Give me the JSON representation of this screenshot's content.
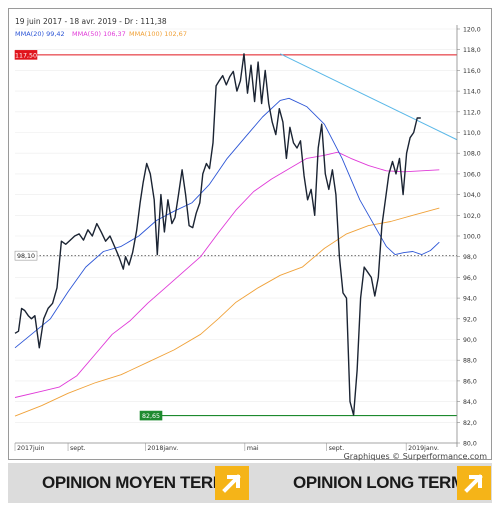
{
  "header_text": "19 juin 2017 - 18 avr. 2019 - Dr : 111,38",
  "legend": [
    {
      "label": "MMA(20)",
      "value": "99,42",
      "color": "#2d56d6"
    },
    {
      "label": "MMA(50)",
      "value": "106,37",
      "color": "#e03ad8"
    },
    {
      "label": "MMA(100)",
      "value": "102,67",
      "color": "#f0a23a"
    }
  ],
  "credit": "Graphiques © Surperformance.com",
  "opinions": {
    "medium_term": "OPINION MOYEN TERME",
    "long_term": "OPINION LONG TERME",
    "medium_icon": "arrow-up-right-icon",
    "long_icon": "arrow-up-right-icon",
    "accent": "#f5b418"
  },
  "chart_data": {
    "type": "line",
    "ylim": [
      80,
      120
    ],
    "y_ticks": [
      "80,0",
      "82,0",
      "84,0",
      "86,0",
      "88,0",
      "90,0",
      "92,0",
      "94,0",
      "96,0",
      "98,0",
      "100,0",
      "102,0",
      "104,0",
      "106,0",
      "108,0",
      "110,0",
      "112,0",
      "114,0",
      "116,0",
      "118,0",
      "120,0"
    ],
    "x_labels": [
      {
        "t": 0.0,
        "label": "2017juin"
      },
      {
        "t": 0.12,
        "label": "sept."
      },
      {
        "t": 0.295,
        "label": "2018janv."
      },
      {
        "t": 0.52,
        "label": "mai"
      },
      {
        "t": 0.705,
        "label": "sept."
      },
      {
        "t": 0.885,
        "label": "2019janv."
      }
    ],
    "levels": [
      {
        "name": "high",
        "value": 117.5,
        "label": "117,50",
        "color": "#e0141c",
        "style": "solid"
      },
      {
        "name": "mid",
        "value": 98.1,
        "label": "98,10",
        "color": "#555555",
        "style": "dotted"
      },
      {
        "name": "low",
        "value": 82.65,
        "label": "82,65",
        "color": "#1d8a2e",
        "style": "solid"
      }
    ],
    "trendline": {
      "color": "#5ab8e8",
      "points": [
        [
          0.6,
          117.6
        ],
        [
          1.0,
          109.3
        ]
      ]
    },
    "series": [
      {
        "name": "Cours",
        "color": "#1b2433",
        "points": [
          [
            0.0,
            90.6
          ],
          [
            0.008,
            90.8
          ],
          [
            0.015,
            93.0
          ],
          [
            0.022,
            92.8
          ],
          [
            0.03,
            92.3
          ],
          [
            0.037,
            92.0
          ],
          [
            0.045,
            92.3
          ],
          [
            0.055,
            89.2
          ],
          [
            0.065,
            92.0
          ],
          [
            0.075,
            93.0
          ],
          [
            0.085,
            93.5
          ],
          [
            0.095,
            95.0
          ],
          [
            0.105,
            99.5
          ],
          [
            0.115,
            99.2
          ],
          [
            0.125,
            99.6
          ],
          [
            0.135,
            100.0
          ],
          [
            0.145,
            100.2
          ],
          [
            0.155,
            99.6
          ],
          [
            0.165,
            100.6
          ],
          [
            0.175,
            100.0
          ],
          [
            0.185,
            101.2
          ],
          [
            0.195,
            100.4
          ],
          [
            0.205,
            99.5
          ],
          [
            0.215,
            100.0
          ],
          [
            0.225,
            99.0
          ],
          [
            0.235,
            98.0
          ],
          [
            0.245,
            96.8
          ],
          [
            0.25,
            98.0
          ],
          [
            0.258,
            97.2
          ],
          [
            0.266,
            98.4
          ],
          [
            0.275,
            100.5
          ],
          [
            0.283,
            103.2
          ],
          [
            0.29,
            105.2
          ],
          [
            0.298,
            107.0
          ],
          [
            0.306,
            106.0
          ],
          [
            0.315,
            103.5
          ],
          [
            0.322,
            98.2
          ],
          [
            0.33,
            104.0
          ],
          [
            0.338,
            100.4
          ],
          [
            0.346,
            103.5
          ],
          [
            0.355,
            101.2
          ],
          [
            0.362,
            101.8
          ],
          [
            0.37,
            104.0
          ],
          [
            0.378,
            106.4
          ],
          [
            0.386,
            104.0
          ],
          [
            0.394,
            101.0
          ],
          [
            0.402,
            100.8
          ],
          [
            0.41,
            102.2
          ],
          [
            0.418,
            103.2
          ],
          [
            0.425,
            106.0
          ],
          [
            0.433,
            107.0
          ],
          [
            0.44,
            106.5
          ],
          [
            0.448,
            109.0
          ],
          [
            0.455,
            114.5
          ],
          [
            0.462,
            115.0
          ],
          [
            0.47,
            115.5
          ],
          [
            0.478,
            114.6
          ],
          [
            0.486,
            115.4
          ],
          [
            0.494,
            115.9
          ],
          [
            0.502,
            114.0
          ],
          [
            0.51,
            115.0
          ],
          [
            0.518,
            117.6
          ],
          [
            0.526,
            113.8
          ],
          [
            0.534,
            116.5
          ],
          [
            0.542,
            113.0
          ],
          [
            0.55,
            116.8
          ],
          [
            0.558,
            112.8
          ],
          [
            0.566,
            116.0
          ],
          [
            0.574,
            112.8
          ],
          [
            0.582,
            111.0
          ],
          [
            0.59,
            109.8
          ],
          [
            0.598,
            112.3
          ],
          [
            0.606,
            111.0
          ],
          [
            0.614,
            107.5
          ],
          [
            0.622,
            110.5
          ],
          [
            0.63,
            109.0
          ],
          [
            0.638,
            108.5
          ],
          [
            0.646,
            109.2
          ],
          [
            0.654,
            105.8
          ],
          [
            0.662,
            103.5
          ],
          [
            0.67,
            104.5
          ],
          [
            0.678,
            102.0
          ],
          [
            0.686,
            108.5
          ],
          [
            0.694,
            110.8
          ],
          [
            0.702,
            106.0
          ],
          [
            0.71,
            104.5
          ],
          [
            0.718,
            106.4
          ],
          [
            0.726,
            104.0
          ],
          [
            0.734,
            98.0
          ],
          [
            0.742,
            94.5
          ],
          [
            0.75,
            94.0
          ],
          [
            0.758,
            84.0
          ],
          [
            0.766,
            82.7
          ],
          [
            0.774,
            87.0
          ],
          [
            0.782,
            94.0
          ],
          [
            0.79,
            97.0
          ],
          [
            0.798,
            96.5
          ],
          [
            0.806,
            96.0
          ],
          [
            0.814,
            94.2
          ],
          [
            0.822,
            96.0
          ],
          [
            0.83,
            101.0
          ],
          [
            0.838,
            103.5
          ],
          [
            0.846,
            106.0
          ],
          [
            0.854,
            107.2
          ],
          [
            0.862,
            106.0
          ],
          [
            0.87,
            107.5
          ],
          [
            0.878,
            104.0
          ],
          [
            0.886,
            108.0
          ],
          [
            0.894,
            109.5
          ],
          [
            0.902,
            110.0
          ],
          [
            0.91,
            111.4
          ],
          [
            0.918,
            111.4
          ]
        ]
      },
      {
        "name": "MMA(20)",
        "color": "#2d56d6",
        "points": [
          [
            0.0,
            89.2
          ],
          [
            0.04,
            90.6
          ],
          [
            0.08,
            92.0
          ],
          [
            0.12,
            94.6
          ],
          [
            0.16,
            97.0
          ],
          [
            0.2,
            98.5
          ],
          [
            0.24,
            99.0
          ],
          [
            0.28,
            100.0
          ],
          [
            0.32,
            101.5
          ],
          [
            0.36,
            102.4
          ],
          [
            0.4,
            103.2
          ],
          [
            0.44,
            105.0
          ],
          [
            0.48,
            107.5
          ],
          [
            0.52,
            109.5
          ],
          [
            0.56,
            111.5
          ],
          [
            0.6,
            113.1
          ],
          [
            0.62,
            113.3
          ],
          [
            0.66,
            112.5
          ],
          [
            0.7,
            110.8
          ],
          [
            0.74,
            107.5
          ],
          [
            0.78,
            103.5
          ],
          [
            0.82,
            100.5
          ],
          [
            0.84,
            99.0
          ],
          [
            0.86,
            98.2
          ],
          [
            0.88,
            98.4
          ],
          [
            0.9,
            98.5
          ],
          [
            0.92,
            98.2
          ],
          [
            0.94,
            98.6
          ],
          [
            0.96,
            99.4
          ]
        ]
      },
      {
        "name": "MMA(50)",
        "color": "#e03ad8",
        "points": [
          [
            0.0,
            84.4
          ],
          [
            0.06,
            85.0
          ],
          [
            0.1,
            85.4
          ],
          [
            0.14,
            86.5
          ],
          [
            0.18,
            88.5
          ],
          [
            0.22,
            90.5
          ],
          [
            0.26,
            91.8
          ],
          [
            0.3,
            93.5
          ],
          [
            0.34,
            95.0
          ],
          [
            0.38,
            96.5
          ],
          [
            0.42,
            98.0
          ],
          [
            0.46,
            100.3
          ],
          [
            0.5,
            102.5
          ],
          [
            0.54,
            104.3
          ],
          [
            0.58,
            105.5
          ],
          [
            0.62,
            106.5
          ],
          [
            0.66,
            107.5
          ],
          [
            0.7,
            107.8
          ],
          [
            0.73,
            108.1
          ],
          [
            0.76,
            107.5
          ],
          [
            0.8,
            106.8
          ],
          [
            0.84,
            106.3
          ],
          [
            0.88,
            106.2
          ],
          [
            0.92,
            106.3
          ],
          [
            0.96,
            106.4
          ]
        ]
      },
      {
        "name": "MMA(100)",
        "color": "#f0a23a",
        "points": [
          [
            0.0,
            82.6
          ],
          [
            0.06,
            83.6
          ],
          [
            0.12,
            84.8
          ],
          [
            0.18,
            85.8
          ],
          [
            0.24,
            86.6
          ],
          [
            0.3,
            87.8
          ],
          [
            0.36,
            89.0
          ],
          [
            0.42,
            90.5
          ],
          [
            0.46,
            92.0
          ],
          [
            0.5,
            93.6
          ],
          [
            0.55,
            95.0
          ],
          [
            0.6,
            96.2
          ],
          [
            0.65,
            97.0
          ],
          [
            0.7,
            98.8
          ],
          [
            0.75,
            100.2
          ],
          [
            0.8,
            101.0
          ],
          [
            0.85,
            101.4
          ],
          [
            0.9,
            102.0
          ],
          [
            0.96,
            102.7
          ]
        ]
      }
    ]
  }
}
